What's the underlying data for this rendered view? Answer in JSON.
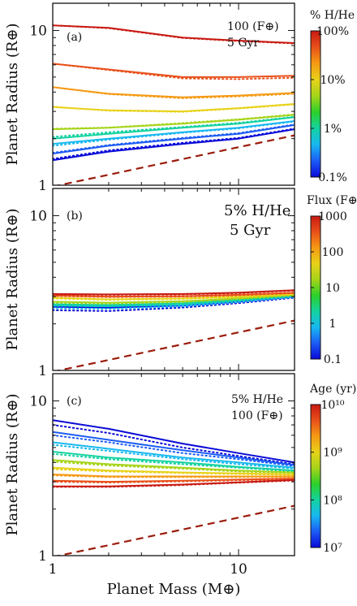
{
  "colors": {
    "rainbow": [
      "#0a0ad8",
      "#1c5cf5",
      "#18b8f0",
      "#14d2a0",
      "#2ccf2a",
      "#a6d41a",
      "#e8d21a",
      "#f59a14",
      "#e8501a",
      "#c81a12"
    ],
    "core_curve": "#9b1c0c"
  },
  "shared": {
    "xlabel": "Planet Mass (M⊕)",
    "ylabel": "Planet Radius (R⊕)",
    "x_ticks": [
      {
        "value": 1,
        "label": "1"
      },
      {
        "value": 10,
        "label": "10"
      }
    ],
    "y_ticks": [
      {
        "value": 1,
        "label": "1"
      },
      {
        "value": 10,
        "label": "10"
      }
    ],
    "xlim": [
      1,
      20
    ],
    "ylim": [
      1,
      15
    ],
    "x_scale": "log",
    "y_scale": "log"
  },
  "chart_data": [
    {
      "type": "line",
      "panel_label": "(a)",
      "annotation": [
        "100 (F⊕)",
        "5 Gyr"
      ],
      "colorbar": {
        "title": "% H/He",
        "scale": "log",
        "range": [
          0.1,
          100
        ],
        "labels": [
          "100%",
          "10%",
          "1%",
          "0.1%"
        ],
        "label_values": [
          100,
          10,
          1,
          0.1
        ]
      },
      "x": [
        1,
        2,
        5,
        10,
        20
      ],
      "series": [
        {
          "values": [
            1.45,
            1.65,
            1.85,
            2.0,
            2.3
          ],
          "dotted": [
            1.48,
            1.68,
            1.88,
            2.02,
            2.32
          ]
        },
        {
          "values": [
            1.6,
            1.8,
            2.0,
            2.15,
            2.45
          ],
          "dotted": [
            1.62,
            1.82,
            2.02,
            2.17,
            2.47
          ]
        },
        {
          "values": [
            1.85,
            2.0,
            2.2,
            2.35,
            2.6
          ],
          "dotted": [
            1.8,
            1.97,
            2.18,
            2.33,
            2.58
          ]
        },
        {
          "values": [
            2.0,
            2.15,
            2.35,
            2.5,
            2.75
          ],
          "dotted": [
            2.05,
            2.2,
            2.38,
            2.53,
            2.77
          ]
        },
        {
          "values": [
            2.3,
            2.35,
            2.5,
            2.65,
            2.85
          ],
          "dotted": [
            2.32,
            2.36,
            2.52,
            2.67,
            2.87
          ]
        },
        {
          "values": [
            3.2,
            3.05,
            3.0,
            3.15,
            3.35
          ],
          "dotted": [
            3.22,
            3.03,
            2.98,
            3.13,
            3.33
          ]
        },
        {
          "values": [
            4.3,
            3.9,
            3.7,
            3.8,
            3.95
          ],
          "dotted": [
            4.3,
            3.88,
            3.65,
            3.75,
            3.9
          ]
        },
        {
          "values": [
            6.1,
            5.6,
            5.0,
            5.0,
            5.1
          ],
          "dotted": [
            6.1,
            5.55,
            4.9,
            4.85,
            4.95
          ]
        },
        {
          "values": [
            10.8,
            10.4,
            9.0,
            8.6,
            8.3
          ],
          "dotted": [
            10.8,
            10.35,
            8.95,
            8.55,
            8.25
          ]
        }
      ],
      "core_curve": {
        "x": [
          1,
          20
        ],
        "values": [
          0.98,
          2.1
        ]
      }
    },
    {
      "type": "line",
      "panel_label": "(b)",
      "annotation": [
        "5% H/He",
        "5 Gyr"
      ],
      "colorbar": {
        "title": "Flux (F⊕)",
        "scale": "log",
        "range": [
          0.1,
          1000
        ],
        "labels": [
          "1000",
          "100",
          "10",
          "1",
          "0.1"
        ],
        "label_values": [
          1000,
          100,
          10,
          1,
          0.1
        ]
      },
      "x": [
        1,
        2,
        5,
        10,
        20
      ],
      "series": [
        {
          "values": [
            2.58,
            2.55,
            2.62,
            2.78,
            3.0
          ],
          "dotted": [
            2.45,
            2.42,
            2.55,
            2.72,
            2.95
          ]
        },
        {
          "values": [
            2.62,
            2.6,
            2.66,
            2.82,
            3.02
          ],
          "dotted": [
            2.52,
            2.5,
            2.6,
            2.76,
            2.98
          ]
        },
        {
          "values": [
            2.68,
            2.65,
            2.72,
            2.86,
            3.05
          ],
          "dotted": [
            2.62,
            2.6,
            2.68,
            2.82,
            3.02
          ]
        },
        {
          "values": [
            2.78,
            2.74,
            2.8,
            2.92,
            3.08
          ],
          "dotted": [
            2.74,
            2.7,
            2.77,
            2.9,
            3.06
          ]
        },
        {
          "values": [
            2.95,
            2.88,
            2.92,
            3.0,
            3.12
          ],
          "dotted": [
            2.92,
            2.86,
            2.9,
            2.98,
            3.1
          ]
        },
        {
          "values": [
            3.05,
            3.0,
            3.02,
            3.08,
            3.18
          ],
          "dotted": [
            3.03,
            2.98,
            3.0,
            3.06,
            3.16
          ]
        },
        {
          "values": [
            3.12,
            3.1,
            3.12,
            3.18,
            3.3
          ],
          "dotted": [
            3.1,
            3.08,
            3.1,
            3.16,
            3.28
          ]
        }
      ],
      "core_curve": {
        "x": [
          1,
          20
        ],
        "values": [
          0.98,
          2.1
        ]
      }
    },
    {
      "type": "line",
      "panel_label": "(c)",
      "annotation": [
        "5% H/He",
        "100 (F⊕)"
      ],
      "colorbar": {
        "title": "Age (yr)",
        "scale": "log",
        "range": [
          10000000.0,
          10000000000.0
        ],
        "labels": [
          "10¹⁰",
          "10⁹",
          "10⁸",
          "10⁷"
        ],
        "label_values": [
          10000000000.0,
          1000000000.0,
          100000000.0,
          10000000.0
        ]
      },
      "x": [
        1,
        2,
        5,
        10,
        20
      ],
      "series": [
        {
          "values": [
            7.5,
            6.6,
            5.3,
            4.6,
            4.0
          ],
          "dotted": [
            7.0,
            6.2,
            5.0,
            4.4,
            3.9
          ]
        },
        {
          "values": [
            6.3,
            5.6,
            4.8,
            4.3,
            3.85
          ],
          "dotted": [
            6.0,
            5.4,
            4.6,
            4.2,
            3.8
          ]
        },
        {
          "values": [
            5.4,
            4.9,
            4.3,
            4.0,
            3.7
          ],
          "dotted": [
            5.2,
            4.75,
            4.2,
            3.9,
            3.65
          ]
        },
        {
          "values": [
            4.7,
            4.3,
            4.0,
            3.75,
            3.55
          ],
          "dotted": [
            4.55,
            4.2,
            3.9,
            3.7,
            3.5
          ]
        },
        {
          "values": [
            4.15,
            3.9,
            3.7,
            3.55,
            3.45
          ],
          "dotted": [
            4.05,
            3.82,
            3.65,
            3.5,
            3.42
          ]
        },
        {
          "values": [
            3.7,
            3.55,
            3.45,
            3.4,
            3.35
          ],
          "dotted": [
            3.62,
            3.5,
            3.42,
            3.37,
            3.32
          ]
        },
        {
          "values": [
            3.35,
            3.25,
            3.25,
            3.25,
            3.25
          ],
          "dotted": [
            3.3,
            3.22,
            3.22,
            3.22,
            3.22
          ]
        },
        {
          "values": [
            3.05,
            3.0,
            3.05,
            3.1,
            3.15
          ],
          "dotted": [
            3.0,
            2.97,
            3.02,
            3.07,
            3.12
          ]
        },
        {
          "values": [
            2.8,
            2.8,
            2.88,
            2.98,
            3.08
          ],
          "dotted": [
            2.78,
            2.78,
            2.86,
            2.96,
            3.06
          ]
        }
      ],
      "core_curve": {
        "x": [
          1,
          20
        ],
        "values": [
          0.98,
          2.1
        ]
      }
    }
  ]
}
